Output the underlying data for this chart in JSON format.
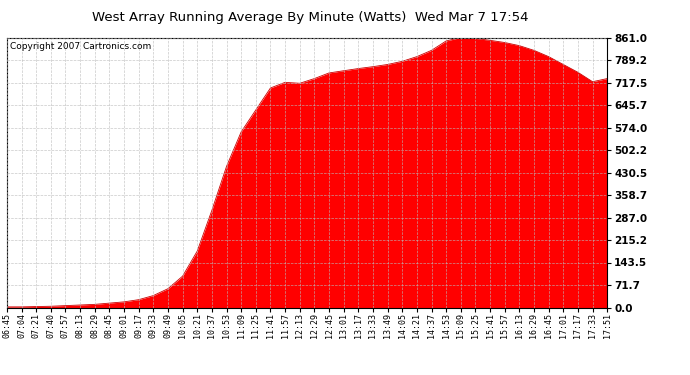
{
  "title": "West Array Running Average By Minute (Watts)  Wed Mar 7 17:54",
  "copyright": "Copyright 2007 Cartronics.com",
  "background_color": "#ffffff",
  "plot_bg_color": "#ffffff",
  "fill_color": "#ff0000",
  "line_color": "#cc0000",
  "grid_color": "#bbbbbb",
  "yticks": [
    0.0,
    71.7,
    143.5,
    215.2,
    287.0,
    358.7,
    430.5,
    502.2,
    574.0,
    645.7,
    717.5,
    789.2,
    861.0
  ],
  "ymin": 0.0,
  "ymax": 861.0,
  "xtick_labels": [
    "06:45",
    "07:04",
    "07:21",
    "07:40",
    "07:57",
    "08:13",
    "08:29",
    "08:45",
    "09:01",
    "09:17",
    "09:33",
    "09:49",
    "10:05",
    "10:21",
    "10:37",
    "10:53",
    "11:09",
    "11:25",
    "11:41",
    "11:57",
    "12:13",
    "12:29",
    "12:45",
    "13:01",
    "13:17",
    "13:33",
    "13:49",
    "14:05",
    "14:21",
    "14:37",
    "14:53",
    "15:09",
    "15:25",
    "15:41",
    "15:57",
    "16:13",
    "16:29",
    "16:45",
    "17:01",
    "17:17",
    "17:33",
    "17:51"
  ],
  "data_y": [
    2,
    2,
    3,
    4,
    6,
    8,
    10,
    14,
    18,
    25,
    38,
    60,
    100,
    180,
    310,
    450,
    560,
    630,
    700,
    718,
    715,
    730,
    748,
    755,
    762,
    768,
    775,
    785,
    800,
    820,
    850,
    861,
    858,
    852,
    845,
    835,
    820,
    800,
    775,
    750,
    720,
    730
  ]
}
